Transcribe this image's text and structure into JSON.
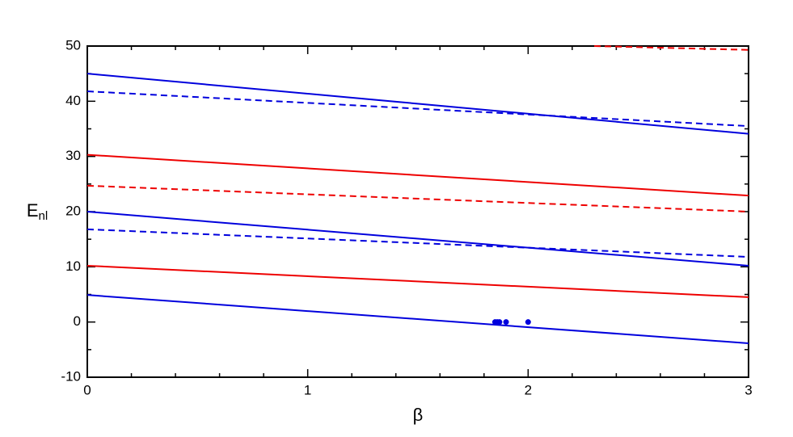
{
  "chart_data": {
    "type": "line",
    "xlabel": "β",
    "ylabel": {
      "text": "E",
      "subscript": "nl"
    },
    "xlim": [
      0,
      3
    ],
    "xticks": [
      0,
      1,
      2,
      3
    ],
    "ylim": [
      -10,
      50
    ],
    "yticks": [
      -10,
      0,
      10,
      20,
      30,
      40,
      50
    ],
    "xminorticks": [
      0.2,
      0.4,
      0.6,
      0.8,
      1.2,
      1.4,
      1.6,
      1.8,
      2.2,
      2.4,
      2.6,
      2.8
    ],
    "yminorticks": [
      -5,
      5,
      15,
      25,
      35,
      45
    ],
    "series": [
      {
        "color": "#0000dd",
        "dashed": false,
        "x": [
          0,
          3
        ],
        "values": [
          4.9,
          -3.85
        ]
      },
      {
        "color": "#ee0000",
        "dashed": false,
        "x": [
          0,
          3
        ],
        "values": [
          10.2,
          4.5
        ]
      },
      {
        "color": "#0000dd",
        "dashed": false,
        "x": [
          0,
          3
        ],
        "values": [
          20.0,
          10.2
        ]
      },
      {
        "color": "#0000dd",
        "dashed": true,
        "x": [
          0,
          3
        ],
        "values": [
          16.8,
          11.8
        ]
      },
      {
        "color": "#ee0000",
        "dashed": true,
        "x": [
          0,
          3
        ],
        "values": [
          24.7,
          20.0
        ]
      },
      {
        "color": "#ee0000",
        "dashed": false,
        "x": [
          0,
          3
        ],
        "values": [
          30.3,
          22.9
        ]
      },
      {
        "color": "#0000dd",
        "dashed": true,
        "x": [
          0,
          3
        ],
        "values": [
          41.8,
          35.5
        ]
      },
      {
        "color": "#0000dd",
        "dashed": false,
        "x": [
          0,
          3
        ],
        "values": [
          45.0,
          34.1
        ]
      },
      {
        "color": "#ee0000",
        "dashed": true,
        "x": [
          2.3,
          3
        ],
        "values": [
          50.0,
          49.3
        ]
      }
    ],
    "points": {
      "color": "#0000dd",
      "x": [
        1.85,
        1.86,
        1.87,
        1.9,
        2.0
      ],
      "values": [
        0,
        0,
        0,
        0,
        0
      ]
    }
  }
}
